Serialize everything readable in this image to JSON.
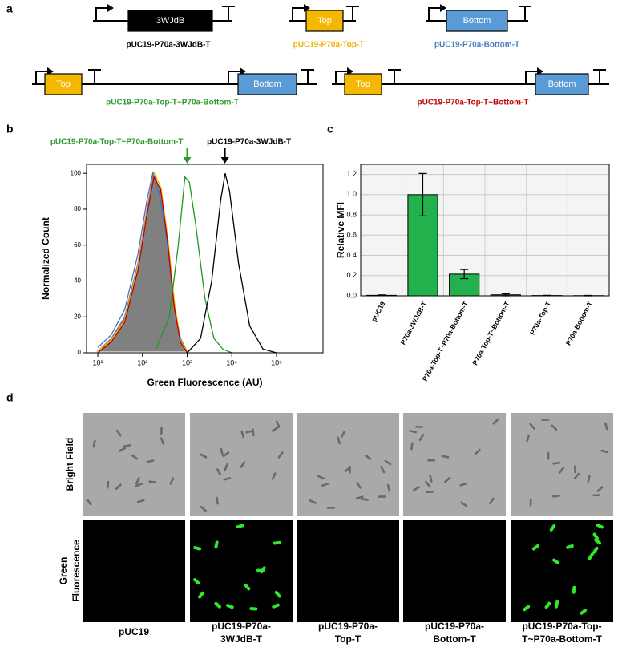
{
  "panel_a": {
    "label": "a",
    "constructs": [
      {
        "boxes": [
          "3WJdB"
        ],
        "name": "pUC19-P70a-3WJdB-T"
      },
      {
        "boxes": [
          "Top"
        ],
        "name": "pUC19-P70a-Top-T"
      },
      {
        "boxes": [
          "Bottom"
        ],
        "name": "pUC19-P70a-Bottom-T"
      },
      {
        "boxes": [
          "Top",
          "Bottom"
        ],
        "name": "pUC19-P70a-Top-T~P70a-Bottom-T"
      },
      {
        "boxes": [
          "Top",
          "Bottom"
        ],
        "name": "pUC19-P70a-Top-T~Bottom-T"
      }
    ]
  },
  "chart_data": [
    {
      "type": "line",
      "panel_label": "b",
      "xlabel": "Green Fluorescence (AU)",
      "ylabel": "Normalized Count",
      "log_x": true,
      "xlim": [
        5.6,
        1100000
      ],
      "xticks": [
        {
          "value": 10,
          "label": "10¹"
        },
        {
          "value": 100,
          "label": "10²"
        },
        {
          "value": 1000,
          "label": "10³"
        },
        {
          "value": 10000,
          "label": "10⁴"
        },
        {
          "value": 100000,
          "label": "10⁵"
        }
      ],
      "ylim": [
        0,
        105
      ],
      "yticks": [
        0,
        20,
        40,
        60,
        80,
        100
      ],
      "annotations": [
        {
          "text": "pUC19-P70a-Top-T~P70a-Bottom-T",
          "x": 1000,
          "color": "#2e9a2e"
        },
        {
          "text": "pUC19-P70a-3WJdB-T",
          "x": 7000,
          "color": "#000000"
        }
      ],
      "series": [
        {
          "color": "#808080",
          "fill": true,
          "x": [
            10,
            20,
            40,
            79,
            126,
            178,
            251,
            355,
            501,
            708,
            1000
          ],
          "values": [
            1,
            8,
            20,
            50,
            80,
            100,
            90,
            60,
            25,
            6,
            1
          ]
        },
        {
          "color": "#4472c4",
          "fill": false,
          "x": [
            10,
            20,
            40,
            79,
            126,
            170,
            240,
            355,
            501,
            708,
            1000
          ],
          "values": [
            3,
            10,
            24,
            55,
            85,
            100,
            88,
            62,
            28,
            8,
            1
          ]
        },
        {
          "color": "#f5b800",
          "fill": false,
          "x": [
            10,
            20,
            40,
            79,
            126,
            185,
            260,
            370,
            520,
            708,
            1000
          ],
          "values": [
            1,
            7,
            18,
            48,
            78,
            100,
            92,
            64,
            28,
            7,
            1
          ]
        },
        {
          "color": "#c00000",
          "fill": false,
          "x": [
            10,
            20,
            40,
            79,
            126,
            180,
            255,
            365,
            510,
            708,
            1000
          ],
          "values": [
            0,
            6,
            17,
            46,
            77,
            98,
            91,
            62,
            26,
            6,
            0
          ]
        },
        {
          "color": "#1f9a1f",
          "fill": false,
          "x": [
            200,
            398,
            631,
            891,
            1122,
            1585,
            2512,
            3981,
            6310,
            10000
          ],
          "values": [
            2,
            20,
            60,
            98,
            95,
            70,
            30,
            8,
            2,
            0
          ]
        },
        {
          "color": "#000000",
          "fill": false,
          "x": [
            1000,
            1995,
            3548,
            5623,
            7079,
            8913,
            14125,
            25119,
            50119,
            100000
          ],
          "values": [
            0,
            8,
            40,
            85,
            100,
            90,
            50,
            15,
            2,
            0
          ]
        }
      ]
    },
    {
      "type": "bar",
      "panel_label": "c",
      "ylabel": "Relative MFI",
      "color": "#22b14c",
      "categories": [
        "pUC19",
        "P70a-3WJdB-T",
        "P70a-Top-T~P70a-Bottom-T",
        "P70a-Top-T~Bottom-T",
        "P70a-Top-T",
        "P70a-Bottom-T"
      ],
      "values": [
        0.005,
        1.0,
        0.215,
        0.01,
        0.003,
        0.002
      ],
      "errors": [
        0.004,
        0.21,
        0.045,
        0.01,
        0.002,
        0.002
      ],
      "ylim": [
        0,
        1.3
      ],
      "yticks": [
        {
          "value": 0,
          "label": "0.0"
        },
        {
          "value": 0.2,
          "label": "0.2"
        },
        {
          "value": 0.4,
          "label": "0.4"
        },
        {
          "value": 0.6,
          "label": "0.6"
        },
        {
          "value": 0.8,
          "label": "0.8"
        },
        {
          "value": 1.0,
          "label": "1.0"
        },
        {
          "value": 1.2,
          "label": "1.2"
        }
      ],
      "grid": true
    }
  ],
  "panel_d": {
    "label": "d",
    "rows": [
      [
        "Bright Field"
      ],
      [
        "Green",
        "Fluorescence"
      ]
    ],
    "columns": [
      [
        "pUC19"
      ],
      [
        "pUC19-P70a-",
        "3WJdB-T"
      ],
      [
        "pUC19-P70a-",
        "Top-T"
      ],
      [
        "pUC19-P70a-",
        "Bottom-T"
      ],
      [
        "pUC19-P70a-Top-",
        "T~P70a-Bottom-T"
      ]
    ]
  }
}
